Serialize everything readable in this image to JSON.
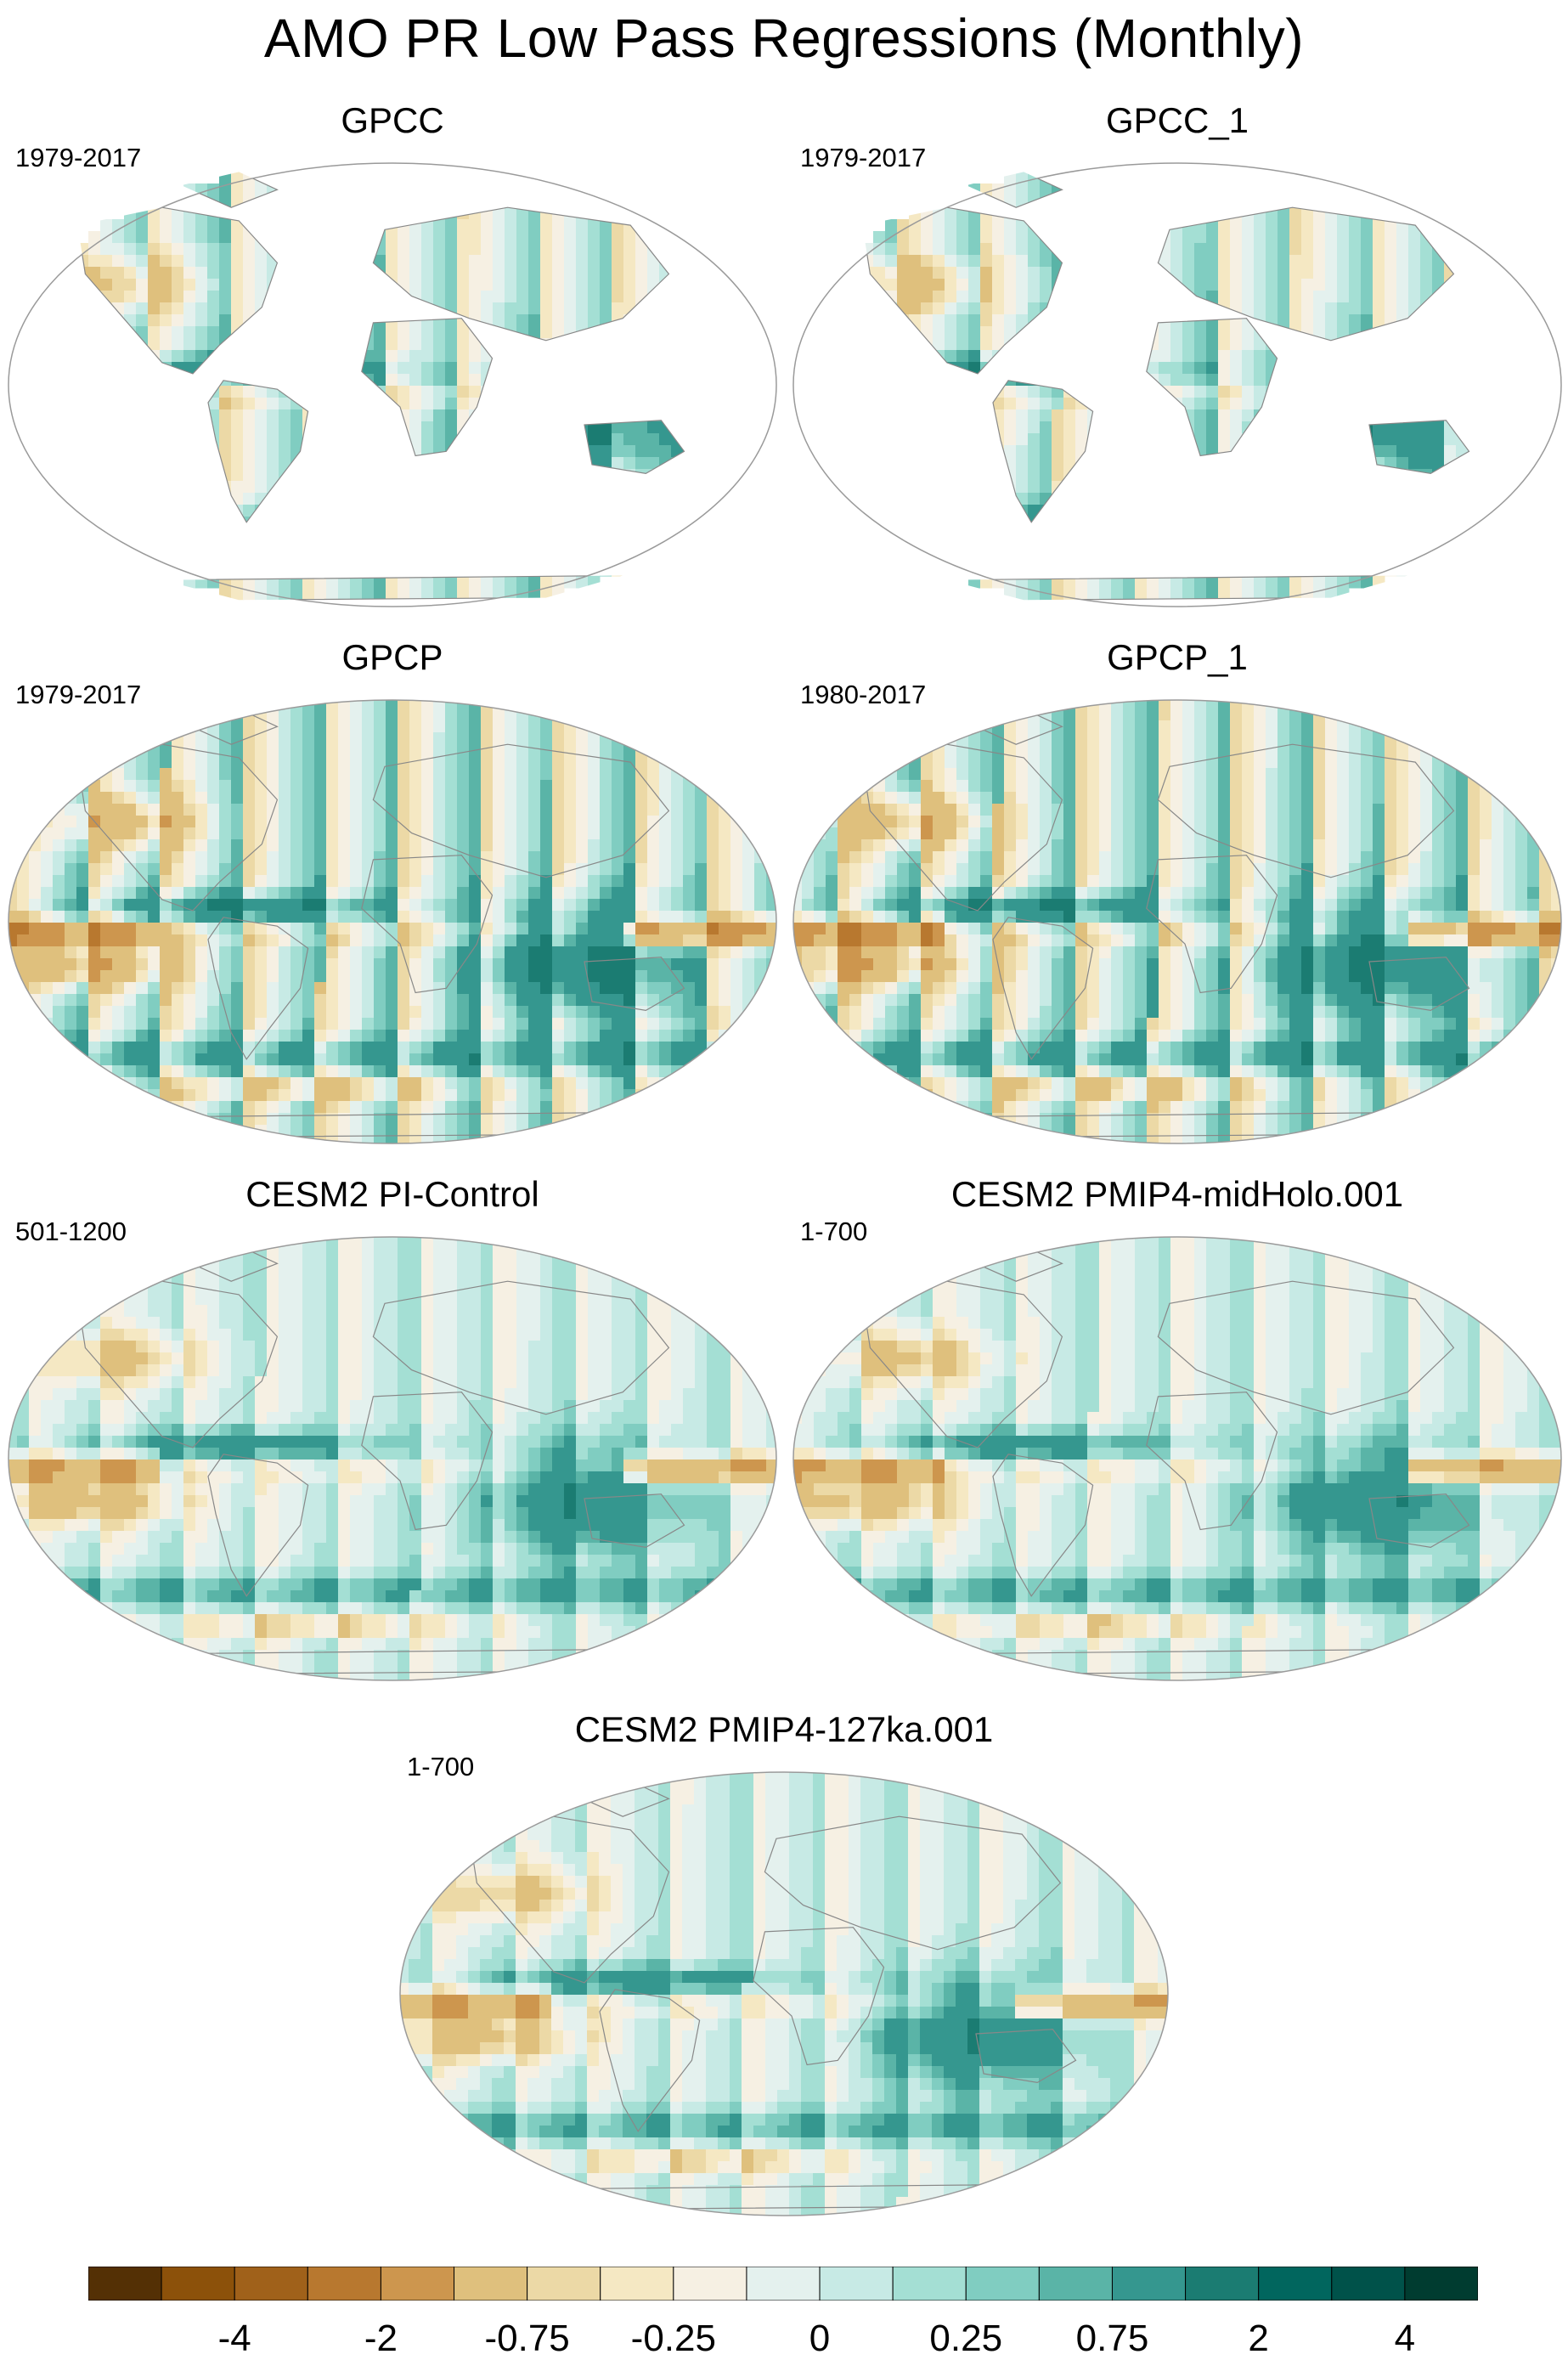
{
  "figure": {
    "title": "AMO PR Low Pass Regressions (Monthly)"
  },
  "panels": [
    {
      "title": "GPCC",
      "period": "1979-2017",
      "kind": "land"
    },
    {
      "title": "GPCC_1",
      "period": "1979-2017",
      "kind": "land"
    },
    {
      "title": "GPCP",
      "period": "1979-2017",
      "kind": "global"
    },
    {
      "title": "GPCP_1",
      "period": "1980-2017",
      "kind": "global"
    },
    {
      "title": "CESM2 PI-Control",
      "period": "501-1200",
      "kind": "model"
    },
    {
      "title": "CESM2 PMIP4-midHolo.001",
      "period": "1-700",
      "kind": "model"
    },
    {
      "title": "CESM2 PMIP4-127ka.001",
      "period": "1-700",
      "kind": "model"
    }
  ],
  "colorbar": {
    "levels": [
      "-4",
      "-2",
      "-0.75",
      "-0.25",
      "0",
      "0.25",
      "0.75",
      "2",
      "4"
    ],
    "colors": [
      "#543005",
      "#8c510a",
      "#a0611a",
      "#b8782f",
      "#cd964e",
      "#dfc07d",
      "#ecd9a6",
      "#f5e8c3",
      "#f6f0e3",
      "#e4f1ee",
      "#c7eae5",
      "#a4dfd4",
      "#80cdc1",
      "#5ab4a7",
      "#35978f",
      "#1b7c72",
      "#01665e",
      "#00524a",
      "#003c30"
    ],
    "tick_positions": [
      2,
      4,
      6,
      8,
      10,
      12,
      14,
      16,
      18
    ]
  },
  "chart_data": [
    {
      "type": "heatmap",
      "title": "GPCC",
      "subtitle": "1979-2017",
      "field": "precipitation regression onto AMO (land only)"
    },
    {
      "type": "heatmap",
      "title": "GPCC_1",
      "subtitle": "1979-2017",
      "field": "precipitation regression onto AMO (land only)"
    },
    {
      "type": "heatmap",
      "title": "GPCP",
      "subtitle": "1979-2017",
      "field": "precipitation regression onto AMO"
    },
    {
      "type": "heatmap",
      "title": "GPCP_1",
      "subtitle": "1980-2017",
      "field": "precipitation regression onto AMO"
    },
    {
      "type": "heatmap",
      "title": "CESM2 PI-Control",
      "subtitle": "501-1200",
      "field": "precipitation regression onto AMO"
    },
    {
      "type": "heatmap",
      "title": "CESM2 PMIP4-midHolo.001",
      "subtitle": "1-700",
      "field": "precipitation regression onto AMO"
    },
    {
      "type": "heatmap",
      "title": "CESM2 PMIP4-127ka.001",
      "subtitle": "1-700",
      "field": "precipitation regression onto AMO"
    }
  ]
}
